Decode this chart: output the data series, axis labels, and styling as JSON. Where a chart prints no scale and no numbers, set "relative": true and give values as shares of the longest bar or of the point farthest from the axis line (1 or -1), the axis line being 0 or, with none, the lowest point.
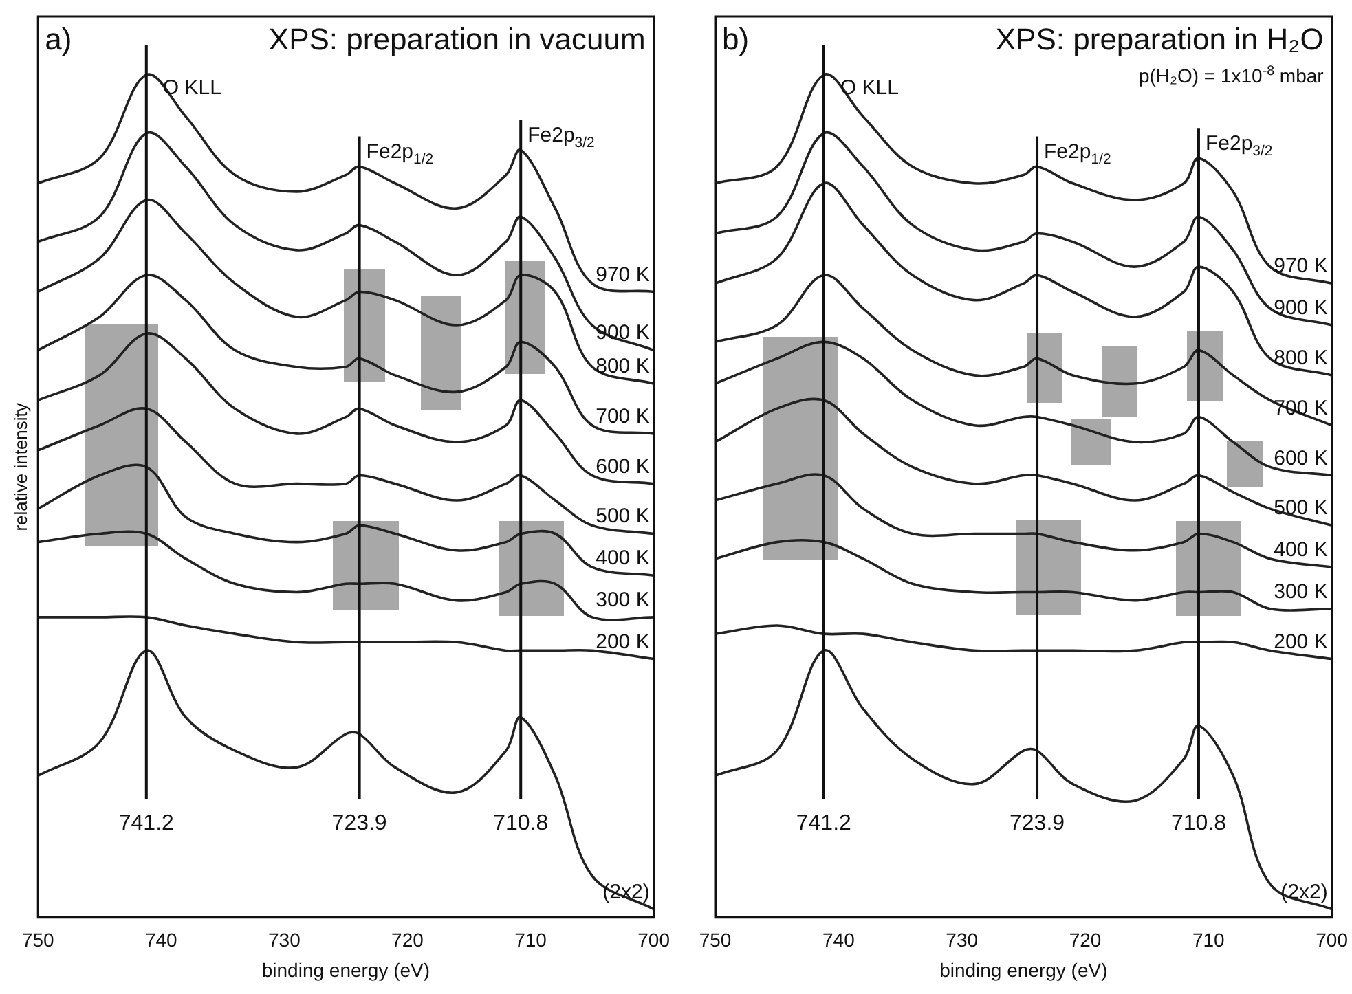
{
  "chart_data": [
    {
      "type": "line",
      "relative": true,
      "title": "XPS: preparation in vacuum",
      "xlabel": "binding energy (eV)",
      "ylabel": "relative intensity",
      "legend": false,
      "grid": false,
      "marker": "none",
      "xlim": [
        750,
        700
      ],
      "xticks": [
        750,
        740,
        730,
        720,
        710,
        700
      ],
      "x": [
        750,
        745,
        741.2,
        738,
        734,
        729,
        725,
        723.9,
        721,
        716,
        712,
        710.8,
        708,
        705,
        700
      ],
      "annotations": [
        "a)",
        "O KLL",
        "Fe2p$_{1/2}$",
        "Fe2p$_{3/2}$"
      ],
      "ref_lines": [
        {
          "axis": "x",
          "value": 741.2,
          "label": "741.2"
        },
        {
          "axis": "x",
          "value": 723.9,
          "label": "723.9"
        },
        {
          "axis": "x",
          "value": 710.8,
          "label": "710.8"
        }
      ],
      "series": [
        {
          "name": "970 K",
          "color": "#222222",
          "values": [
            0.87,
            0.9,
            1.0,
            0.95,
            0.88,
            0.86,
            0.88,
            0.89,
            0.87,
            0.84,
            0.88,
            0.91,
            0.84,
            0.75,
            0.74
          ]
        },
        {
          "name": "900 K",
          "color": "#222222",
          "values": [
            0.8,
            0.83,
            0.93,
            0.89,
            0.82,
            0.79,
            0.81,
            0.82,
            0.8,
            0.76,
            0.8,
            0.83,
            0.78,
            0.7,
            0.67
          ]
        },
        {
          "name": "800 K",
          "color": "#222222",
          "values": [
            0.74,
            0.78,
            0.85,
            0.81,
            0.75,
            0.71,
            0.73,
            0.74,
            0.73,
            0.7,
            0.73,
            0.76,
            0.74,
            0.65,
            0.63
          ]
        },
        {
          "name": "700 K",
          "color": "#222222",
          "values": [
            0.67,
            0.71,
            0.76,
            0.73,
            0.67,
            0.65,
            0.65,
            0.66,
            0.64,
            0.62,
            0.65,
            0.68,
            0.65,
            0.58,
            0.57
          ]
        },
        {
          "name": "600 K",
          "color": "#222222",
          "values": [
            0.61,
            0.64,
            0.69,
            0.66,
            0.6,
            0.57,
            0.59,
            0.6,
            0.58,
            0.56,
            0.58,
            0.61,
            0.57,
            0.52,
            0.51
          ]
        },
        {
          "name": "500 K",
          "color": "#222222",
          "values": [
            0.55,
            0.58,
            0.6,
            0.56,
            0.51,
            0.51,
            0.51,
            0.52,
            0.51,
            0.49,
            0.51,
            0.52,
            0.49,
            0.46,
            0.45
          ]
        },
        {
          "name": "400 K",
          "color": "#222222",
          "values": [
            0.48,
            0.52,
            0.53,
            0.47,
            0.45,
            0.44,
            0.45,
            0.46,
            0.45,
            0.43,
            0.44,
            0.45,
            0.45,
            0.41,
            0.4
          ]
        },
        {
          "name": "300 K",
          "color": "#222222",
          "values": [
            0.44,
            0.45,
            0.45,
            0.42,
            0.39,
            0.38,
            0.39,
            0.39,
            0.39,
            0.37,
            0.38,
            0.39,
            0.39,
            0.35,
            0.35
          ]
        },
        {
          "name": "200 K",
          "color": "#222222",
          "values": [
            0.35,
            0.35,
            0.35,
            0.34,
            0.33,
            0.32,
            0.32,
            0.32,
            0.32,
            0.32,
            0.31,
            0.31,
            0.31,
            0.31,
            0.3
          ]
        },
        {
          "name": "(2x2)",
          "color": "#222222",
          "values": [
            0.16,
            0.2,
            0.31,
            0.23,
            0.19,
            0.17,
            0.21,
            0.21,
            0.17,
            0.14,
            0.19,
            0.23,
            0.16,
            0.04,
            0
          ]
        }
      ]
    },
    {
      "type": "line",
      "relative": true,
      "title": "XPS: preparation in H₂O",
      "subtitle": "p(H₂O) = 1x10$^{-8}$ mbar",
      "xlabel": "binding energy (eV)",
      "legend": false,
      "grid": false,
      "marker": "none",
      "xlim": [
        750,
        700
      ],
      "xticks": [
        750,
        740,
        730,
        720,
        710,
        700
      ],
      "x": [
        750,
        745,
        741.2,
        738,
        734,
        729,
        725,
        723.9,
        721,
        716,
        712,
        710.8,
        708,
        705,
        700
      ],
      "annotations": [
        "b)",
        "O KLL",
        "Fe2p$_{1/2}$",
        "Fe2p$_{3/2}$"
      ],
      "ref_lines": [
        {
          "axis": "x",
          "value": 741.2,
          "label": "741.2"
        },
        {
          "axis": "x",
          "value": 723.9,
          "label": "723.9"
        },
        {
          "axis": "x",
          "value": 710.8,
          "label": "710.8"
        }
      ],
      "series": [
        {
          "name": "970 K",
          "color": "#222222",
          "values": [
            0.87,
            0.89,
            1.0,
            0.95,
            0.89,
            0.87,
            0.88,
            0.89,
            0.87,
            0.85,
            0.87,
            0.9,
            0.86,
            0.77,
            0.75
          ]
        },
        {
          "name": "900 K",
          "color": "#222222",
          "values": [
            0.81,
            0.83,
            0.93,
            0.89,
            0.82,
            0.79,
            0.8,
            0.81,
            0.8,
            0.77,
            0.8,
            0.83,
            0.79,
            0.72,
            0.7
          ]
        },
        {
          "name": "800 K",
          "color": "#222222",
          "values": [
            0.75,
            0.78,
            0.87,
            0.82,
            0.76,
            0.73,
            0.75,
            0.76,
            0.74,
            0.71,
            0.74,
            0.77,
            0.74,
            0.66,
            0.64
          ]
        },
        {
          "name": "700 K",
          "color": "#222222",
          "values": [
            0.68,
            0.7,
            0.76,
            0.72,
            0.67,
            0.64,
            0.65,
            0.66,
            0.64,
            0.63,
            0.65,
            0.67,
            0.64,
            0.61,
            0.58
          ]
        },
        {
          "name": "600 K",
          "color": "#222222",
          "values": [
            0.63,
            0.66,
            0.68,
            0.66,
            0.61,
            0.58,
            0.59,
            0.59,
            0.58,
            0.56,
            0.57,
            0.59,
            0.56,
            0.53,
            0.52
          ]
        },
        {
          "name": "500 K",
          "color": "#222222",
          "values": [
            0.56,
            0.6,
            0.61,
            0.57,
            0.53,
            0.51,
            0.52,
            0.52,
            0.51,
            0.49,
            0.51,
            0.52,
            0.5,
            0.48,
            0.46
          ]
        },
        {
          "name": "400 K",
          "color": "#222222",
          "values": [
            0.49,
            0.51,
            0.52,
            0.48,
            0.45,
            0.45,
            0.45,
            0.45,
            0.44,
            0.43,
            0.44,
            0.45,
            0.44,
            0.42,
            0.41
          ]
        },
        {
          "name": "300 K",
          "color": "#222222",
          "values": [
            0.42,
            0.44,
            0.44,
            0.42,
            0.39,
            0.38,
            0.38,
            0.38,
            0.38,
            0.37,
            0.38,
            0.38,
            0.38,
            0.36,
            0.36
          ]
        },
        {
          "name": "200 K",
          "color": "#222222",
          "values": [
            0.33,
            0.34,
            0.33,
            0.33,
            0.32,
            0.31,
            0.31,
            0.31,
            0.31,
            0.31,
            0.32,
            0.32,
            0.32,
            0.31,
            0.3
          ]
        },
        {
          "name": "(2x2)",
          "color": "#222222",
          "values": [
            0.16,
            0.19,
            0.31,
            0.24,
            0.18,
            0.15,
            0.19,
            0.19,
            0.15,
            0.13,
            0.18,
            0.22,
            0.16,
            0.03,
            0
          ]
        }
      ]
    }
  ]
}
